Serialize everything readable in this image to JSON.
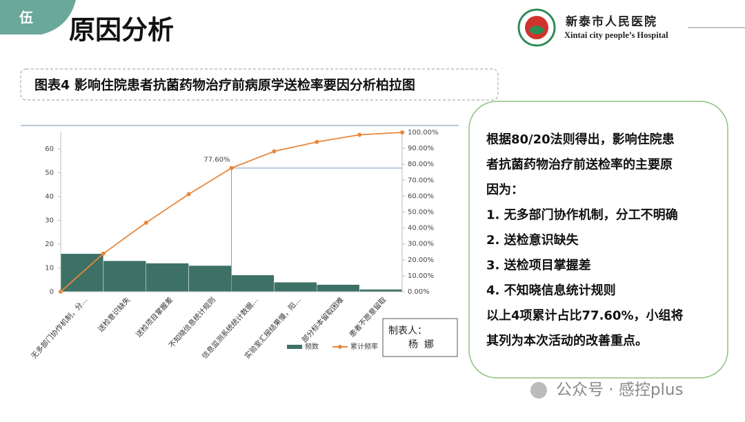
{
  "section_badge": "伍",
  "title": "原因分析",
  "hospital": {
    "name": "新泰市人民医院",
    "name_en": "Xintai city people’s Hospital"
  },
  "chart_caption": "图表4 影响住院患者抗菌药物治疗前病原学送检率要因分析柏拉图",
  "chart_data": {
    "type": "pareto",
    "categories": [
      "无多部门协作机制，分…",
      "送检意识缺失",
      "送检项目掌握差",
      "不知晓信息统计规则",
      "信息监测系统统计数据…",
      "实验室汇报结果慢，阳…",
      "部分标本留取困难",
      "患者不愿意留取"
    ],
    "series": [
      {
        "name": "频数",
        "color": "#3e7166",
        "values": [
          16,
          13,
          12,
          11,
          7,
          4,
          3,
          1
        ]
      },
      {
        "name": "累计频率",
        "color": "#e8873a",
        "axis": "y2",
        "values": [
          23.9,
          43.3,
          61.2,
          77.6,
          88.1,
          94.0,
          98.5,
          100
        ],
        "value_labels": [
          null,
          null,
          null,
          "77.60%",
          null,
          null,
          null,
          null
        ]
      }
    ],
    "ylim": [
      0,
      67
    ],
    "yticks": [
      0,
      10,
      20,
      30,
      40,
      50,
      60
    ],
    "y2lim": [
      0,
      100
    ],
    "y2ticks": [
      {
        "value": 0,
        "label": "0.00%"
      },
      {
        "value": 10,
        "label": "10.00%"
      },
      {
        "value": 20,
        "label": "20.00%"
      },
      {
        "value": 30,
        "label": "30.00%"
      },
      {
        "value": 40,
        "label": "40.00%"
      },
      {
        "value": 50,
        "label": "50.00%"
      },
      {
        "value": 60,
        "label": "60.00%"
      },
      {
        "value": 70,
        "label": "70.00%"
      },
      {
        "value": 80,
        "label": "80.00%"
      },
      {
        "value": 90,
        "label": "90.00%"
      },
      {
        "value": 100,
        "label": "100.00%"
      }
    ],
    "legend": "bottom",
    "grid": false
  },
  "maker": {
    "label": "制表人：",
    "name": "杨  娜"
  },
  "conclusion": {
    "lines": [
      "根据80/20法则得出，影响住院患",
      "者抗菌药物治疗前送检率的主要原",
      "因为：",
      "1.  无多部门协作机制，分工不明确",
      "2.  送检意识缺失",
      "3.  送检项目掌握差",
      "4.  不知晓信息统计规则",
      "以上4项累计占比77.60%，小组将",
      "其列为本次活动的改善重点。"
    ]
  },
  "watermark": "公众号 · 感控plus"
}
